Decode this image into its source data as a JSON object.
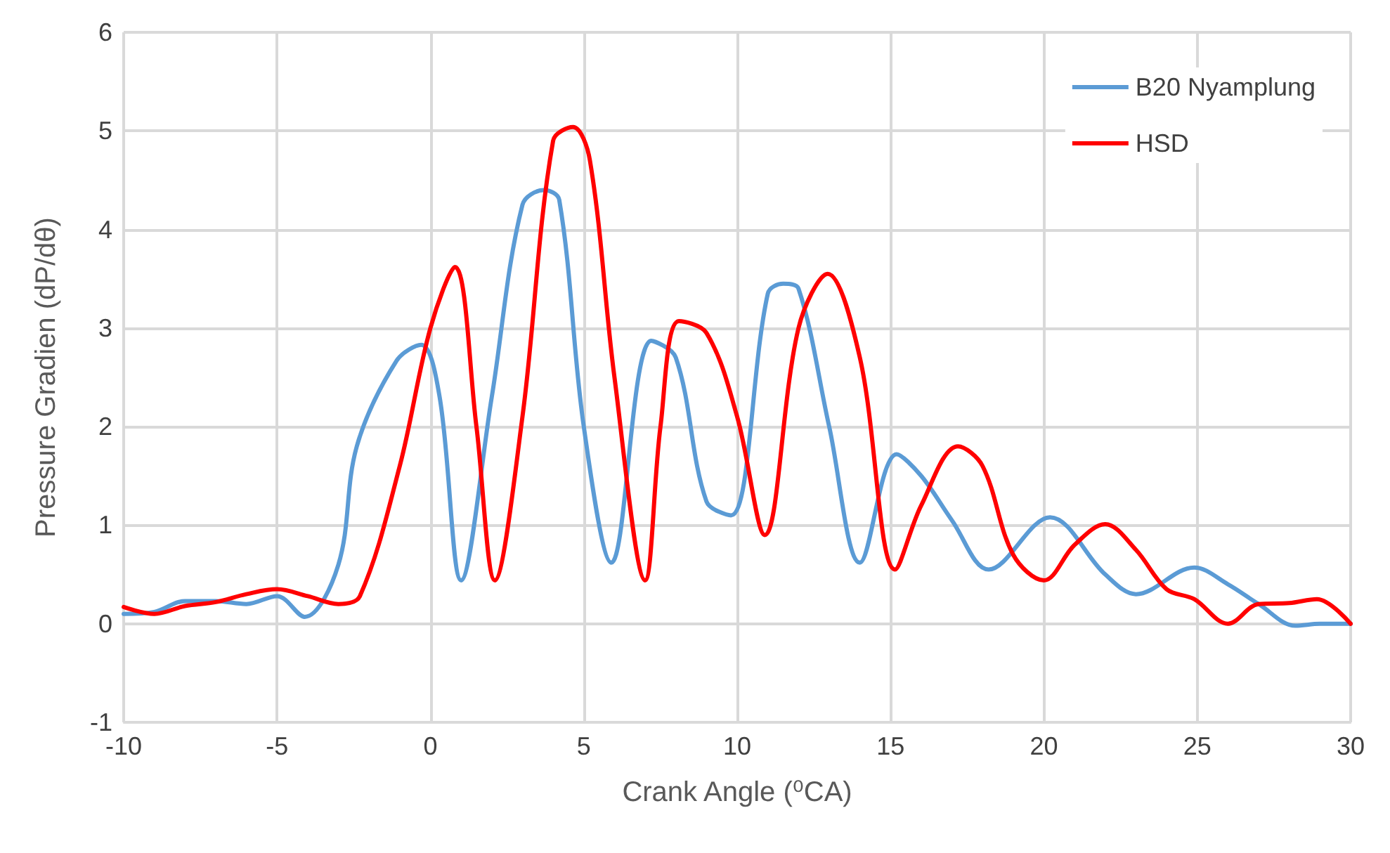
{
  "chart_data": {
    "type": "line",
    "xlabel": "Crank Angle (⁰CA)",
    "ylabel": "Pressure Gradien (dP/dθ)",
    "xlim": [
      -10,
      30
    ],
    "xticks": [
      -10,
      -5,
      0,
      5,
      10,
      15,
      20,
      25,
      30
    ],
    "ylim": [
      -1,
      6
    ],
    "yticks": [
      -1,
      0,
      1,
      2,
      3,
      4,
      5,
      6
    ],
    "grid": true,
    "legend": "top right",
    "marker": "none",
    "line_style": "solid",
    "series": [
      {
        "name": "B20 Nyamplung",
        "color": "#5b9bd5",
        "x": [
          -10,
          -9,
          -8,
          -7,
          -6,
          -5,
          -4.1,
          -3,
          -2.4,
          -1.1,
          -0.3,
          0.3,
          1.0,
          2,
          3,
          3.7,
          4.2,
          5,
          5.9,
          7.2,
          8,
          9,
          9.8,
          11,
          11.5,
          12,
          13,
          14,
          15.2,
          16,
          17,
          18.2,
          20.2,
          22,
          23,
          24.9,
          26,
          27,
          28.2,
          29,
          30
        ],
        "values": [
          0.1,
          0.12,
          0.23,
          0.23,
          0.2,
          0.28,
          0.07,
          0.6,
          1.8,
          2.67,
          2.83,
          2.3,
          0.44,
          2.3,
          4.25,
          4.4,
          4.3,
          2.0,
          0.62,
          2.87,
          2.7,
          1.24,
          1.1,
          3.35,
          3.45,
          3.4,
          2.0,
          0.62,
          1.72,
          1.5,
          1.05,
          0.55,
          1.08,
          0.5,
          0.3,
          0.57,
          0.4,
          0.2,
          -0.02,
          0.0,
          0.0
        ]
      },
      {
        "name": "HSD",
        "color": "#ff0000",
        "x": [
          -10,
          -9,
          -8,
          -7,
          -6,
          -5,
          -4,
          -3,
          -2.3,
          -1,
          0,
          0.8,
          1.5,
          2.1,
          3,
          4,
          4.65,
          5.2,
          6,
          7,
          7.5,
          8.1,
          9,
          10,
          10.9,
          12,
          12.95,
          14,
          15.15,
          16,
          17.2,
          18,
          19,
          20,
          21,
          22,
          23,
          24,
          24.9,
          26,
          27,
          28,
          28.9,
          30
        ],
        "values": [
          0.17,
          0.1,
          0.18,
          0.22,
          0.3,
          0.35,
          0.28,
          0.2,
          0.28,
          1.6,
          3.0,
          3.62,
          2.0,
          0.44,
          2.1,
          4.9,
          5.04,
          4.7,
          2.5,
          0.44,
          2.0,
          3.07,
          2.95,
          2.1,
          0.9,
          3.0,
          3.55,
          2.7,
          0.55,
          1.2,
          1.8,
          1.6,
          0.7,
          0.44,
          0.8,
          1.01,
          0.75,
          0.35,
          0.25,
          0.0,
          0.2,
          0.21,
          0.25,
          0.0
        ]
      }
    ]
  }
}
